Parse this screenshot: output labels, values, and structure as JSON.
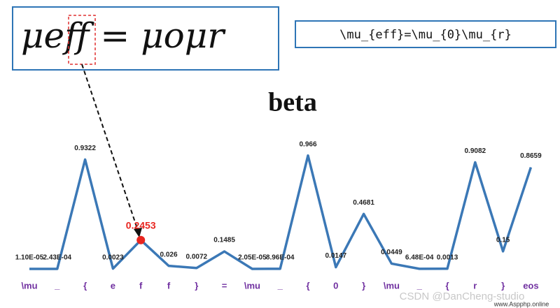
{
  "handwritten_formula": "μeff = μoμr",
  "latex_formula": "\\mu_{eff}=\\mu_{0}\\mu_{r}",
  "watermark": "CSDN @DanCheng-studio",
  "site_mark": "www.Aspphp.online",
  "chart_data": {
    "type": "line",
    "title": "beta",
    "categories": [
      "\\mu",
      "_",
      "{",
      "e",
      "f",
      "f",
      "}",
      "=",
      "\\mu",
      "_",
      "{",
      "0",
      "}",
      "\\mu",
      "_",
      "{",
      "r",
      "}",
      "eos"
    ],
    "values": [
      1.1e-05,
      0.000243,
      0.9322,
      0.0023,
      0.2453,
      0.026,
      0.0072,
      0.1485,
      2.05e-05,
      0.000896,
      0.966,
      0.0147,
      0.4681,
      0.0449,
      0.000648,
      0.0013,
      0.9082,
      0.15,
      0.8659
    ],
    "value_labels": [
      "1.10E-05",
      "2.43E-04",
      "0.9322",
      "0.0023",
      "0.2453",
      "0.026",
      "0.0072",
      "0.1485",
      "2.05E-05",
      "8.96E-04",
      "0.966",
      "0.0147",
      "0.4681",
      "0.0449",
      "6.48E-04",
      "0.0013",
      "0.9082",
      "0.15",
      "0.8659"
    ],
    "color": "#3b78b6",
    "highlight": {
      "index": 4,
      "color": "#e8251f"
    }
  }
}
